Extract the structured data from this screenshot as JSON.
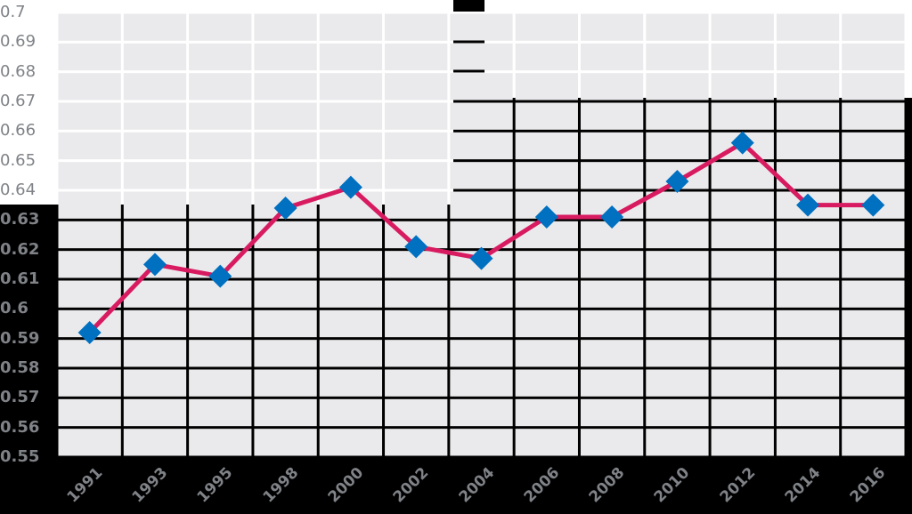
{
  "chart_data": {
    "type": "line",
    "title": "",
    "xlabel": "",
    "ylabel": "",
    "categories": [
      "1991",
      "1993",
      "1995",
      "1998",
      "2000",
      "2002",
      "2004",
      "2006",
      "2008",
      "2010",
      "2012",
      "2014",
      "2016"
    ],
    "series": [
      {
        "name": "",
        "values": [
          0.592,
          0.615,
          0.611,
          0.634,
          0.641,
          0.621,
          0.617,
          0.631,
          0.631,
          0.643,
          0.656,
          0.635,
          0.635
        ],
        "line_color": "#d81b60",
        "marker": "diamond",
        "marker_color": "#0070c0"
      }
    ],
    "ylim": [
      0.55,
      0.7
    ],
    "yticks": [
      "0.7",
      "0.69",
      "0.68",
      "0.67",
      "0.66",
      "0.65",
      "0.64",
      "0.63",
      "0.62",
      "0.61",
      "0.6",
      "0.59",
      "0.58",
      "0.57",
      "0.56",
      "0.55"
    ],
    "grid": true,
    "legend": "none",
    "colors": {
      "plot_background": "#eaeaec",
      "grid": "#ffffff",
      "tick_label": "#7f8287"
    }
  }
}
